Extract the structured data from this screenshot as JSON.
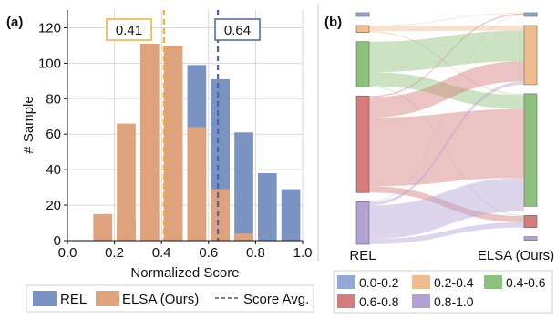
{
  "panel_a": {
    "label": "(a)",
    "ylabel": "# Sample",
    "xlabel": "Normalized Score",
    "avg_labels": [
      "0.41",
      "0.64"
    ],
    "legend": [
      "REL",
      "ELSA (Ours)",
      "Score Avg."
    ]
  },
  "panel_b": {
    "label": "(b)",
    "left_axis_label": "REL",
    "right_axis_label": "ELSA (Ours)",
    "legend": [
      "0.0-0.2",
      "0.2-0.4",
      "0.4-0.6",
      "0.6-0.8",
      "0.8-1.0"
    ]
  },
  "colors": {
    "rel": "#7b93c3",
    "elsa": "#dea37d",
    "avg_elsa": "#f2ad3c",
    "avg_rel": "#4a64ad",
    "bins": [
      "#91a9d4",
      "#efbd8d",
      "#8cc17b",
      "#d47b7b",
      "#b3a1d4"
    ]
  },
  "chart_data": [
    {
      "type": "bar",
      "title": "",
      "xlabel": "Normalized Score",
      "ylabel": "# Sample",
      "xlim": [
        0.0,
        1.0
      ],
      "ylim": [
        0,
        130
      ],
      "xticks": [
        "0.0",
        "0.2",
        "0.4",
        "0.6",
        "0.8",
        "1.0"
      ],
      "yticks": [
        "0",
        "20",
        "40",
        "60",
        "80",
        "100",
        "120"
      ],
      "grid": true,
      "legend_position": "bottom",
      "series": [
        {
          "name": "REL",
          "x": [
            0.25,
            0.35,
            0.45,
            0.55,
            0.65,
            0.75,
            0.85,
            0.95
          ],
          "values": [
            11,
            16,
            55,
            99,
            91,
            61,
            38,
            29
          ]
        },
        {
          "name": "ELSA (Ours)",
          "x": [
            0.15,
            0.25,
            0.35,
            0.45,
            0.55,
            0.65,
            0.75
          ],
          "values": [
            15,
            66,
            111,
            110,
            64,
            29,
            4
          ]
        }
      ],
      "reference_lines": [
        {
          "name": "Score Avg.",
          "series": "ELSA (Ours)",
          "x": 0.41
        },
        {
          "name": "Score Avg.",
          "series": "REL",
          "x": 0.64
        }
      ]
    },
    {
      "type": "sankey",
      "title": "",
      "left_label": "REL",
      "right_label": "ELSA (Ours)",
      "legend_position": "bottom",
      "nodes": [
        "0.0-0.2",
        "0.2-0.4",
        "0.4-0.6",
        "0.6-0.8",
        "0.8-1.0"
      ],
      "left_totals": [
        0,
        11,
        71,
        152,
        67
      ],
      "right_totals": [
        4,
        93,
        177,
        19,
        0
      ],
      "flows": [
        {
          "from": "0.2-0.4",
          "to": "0.0-0.2",
          "value": 1
        },
        {
          "from": "0.2-0.4",
          "to": "0.2-0.4",
          "value": 8
        },
        {
          "from": "0.2-0.4",
          "to": "0.4-0.6",
          "value": 2
        },
        {
          "from": "0.4-0.6",
          "to": "0.2-0.4",
          "value": 48
        },
        {
          "from": "0.4-0.6",
          "to": "0.4-0.6",
          "value": 22
        },
        {
          "from": "0.4-0.6",
          "to": "0.6-0.8",
          "value": 1
        },
        {
          "from": "0.6-0.8",
          "to": "0.0-0.2",
          "value": 2
        },
        {
          "from": "0.6-0.8",
          "to": "0.2-0.4",
          "value": 32
        },
        {
          "from": "0.6-0.8",
          "to": "0.4-0.6",
          "value": 108
        },
        {
          "from": "0.6-0.8",
          "to": "0.6-0.8",
          "value": 10
        },
        {
          "from": "0.8-1.0",
          "to": "0.0-0.2",
          "value": 1
        },
        {
          "from": "0.8-1.0",
          "to": "0.2-0.4",
          "value": 5
        },
        {
          "from": "0.8-1.0",
          "to": "0.4-0.6",
          "value": 53
        },
        {
          "from": "0.8-1.0",
          "to": "0.6-0.8",
          "value": 8
        }
      ]
    }
  ]
}
